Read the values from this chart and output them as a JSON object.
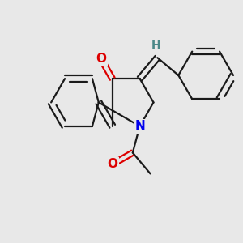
{
  "bg_color": "#e8e8e8",
  "bond_color": "#1a1a1a",
  "N_color": "#0000ee",
  "O_color": "#dd0000",
  "H_color": "#4a8888",
  "line_width": 1.6,
  "figsize": [
    3.0,
    3.0
  ],
  "dpi": 100,
  "xlim": [
    0,
    10
  ],
  "ylim": [
    0,
    10
  ]
}
